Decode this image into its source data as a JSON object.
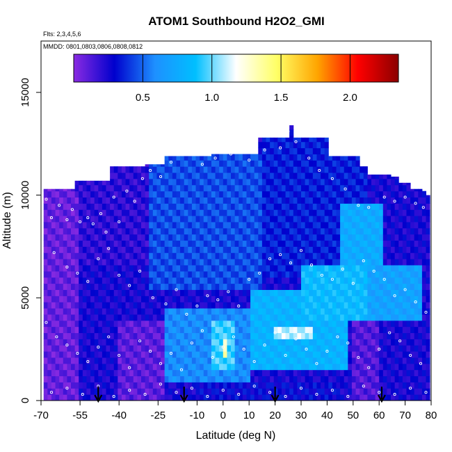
{
  "chart_data": {
    "type": "heatmap",
    "title": "ATOM1 Southbound H2O2_GMI",
    "subtitle_flights": "Flts: 2,3,4,5,6",
    "subtitle_dates": "MMDD: 0801,0803,0806,0808,0812",
    "xlabel": "Latitude (deg N)",
    "ylabel": "Altitude (m)",
    "xlim": [
      -70,
      80
    ],
    "ylim": [
      0,
      17500
    ],
    "x_ticks": [
      "-70",
      "-55",
      "-40",
      "-25",
      "-10",
      "0",
      "10",
      "20",
      "30",
      "40",
      "50",
      "60",
      "70",
      "80"
    ],
    "x_tick_values": [
      -70,
      -55,
      -40,
      -25,
      -10,
      0,
      10,
      20,
      30,
      40,
      50,
      60,
      70,
      80
    ],
    "y_ticks": [
      "0",
      "5000",
      "10000",
      "15000"
    ],
    "y_tick_values": [
      0,
      5000,
      10000,
      15000
    ],
    "colorbar": {
      "range": [
        0,
        2.35
      ],
      "tick_labels": [
        "0.5",
        "1.0",
        "1.5",
        "2.0"
      ],
      "tick_values": [
        0.5,
        1.0,
        1.5,
        2.0
      ],
      "colors": [
        "#8a2be2",
        "#0000cd",
        "#1e90ff",
        "#00bfff",
        "#ffffff",
        "#ffff66",
        "#ffa500",
        "#ff0000",
        "#8b0000"
      ]
    },
    "colors": {
      "low": "#8a2be2",
      "mid_low": "#0000cd",
      "mid": "#00bfff",
      "high": "#ffffff"
    },
    "top_altitude_profile": {
      "lat": [
        -69,
        -57,
        -48,
        -44,
        -35,
        -30,
        -24,
        -22,
        -13,
        -5,
        0,
        2,
        10,
        13,
        24,
        25,
        27,
        34,
        40,
        44,
        53,
        56,
        64,
        68,
        72,
        76,
        78,
        79
      ],
      "alt": [
        10300,
        10700,
        10700,
        11400,
        11400,
        11500,
        11500,
        11900,
        11900,
        12000,
        12000,
        12000,
        12000,
        12800,
        12800,
        13400,
        12800,
        12800,
        11900,
        11900,
        11400,
        11000,
        10900,
        10600,
        10300,
        10200,
        10000,
        9500
      ]
    },
    "regions": [
      {
        "lat": [
          -70,
          -56
        ],
        "alt": [
          0,
          10300
        ],
        "value": 0.08
      },
      {
        "lat": [
          -56,
          -28
        ],
        "alt": [
          6500,
          11500
        ],
        "value": 0.2
      },
      {
        "lat": [
          -28,
          15
        ],
        "alt": [
          5500,
          12000
        ],
        "value": 0.45
      },
      {
        "lat": [
          15,
          55
        ],
        "alt": [
          6000,
          12800
        ],
        "value": 0.35
      },
      {
        "lat": [
          45,
          62
        ],
        "alt": [
          5500,
          9500
        ],
        "value": 0.75
      },
      {
        "lat": [
          -40,
          -22
        ],
        "alt": [
          0,
          4000
        ],
        "value": 0.1
      },
      {
        "lat": [
          -22,
          10
        ],
        "alt": [
          1000,
          4500
        ],
        "value": 0.6
      },
      {
        "lat": [
          -5,
          5
        ],
        "alt": [
          1500,
          4000
        ],
        "value": 0.95
      },
      {
        "lat": [
          0,
          2
        ],
        "alt": [
          2000,
          3000
        ],
        "value": 1.3
      },
      {
        "lat": [
          10,
          48
        ],
        "alt": [
          1500,
          5500
        ],
        "value": 0.8
      },
      {
        "lat": [
          20,
          35
        ],
        "alt": [
          3000,
          3600
        ],
        "value": 1.1
      },
      {
        "lat": [
          30,
          55
        ],
        "alt": [
          4000,
          6500
        ],
        "value": 0.85
      },
      {
        "lat": [
          55,
          77
        ],
        "alt": [
          4000,
          6500
        ],
        "value": 0.7
      },
      {
        "lat": [
          50,
          60
        ],
        "alt": [
          0,
          4000
        ],
        "value": 0.12
      },
      {
        "lat": [
          -10,
          45
        ],
        "alt": [
          0,
          1000
        ],
        "value": 0.3
      }
    ],
    "sample_points": [
      [
        -68,
        9800
      ],
      [
        -66,
        8900
      ],
      [
        -63,
        9500
      ],
      [
        -60,
        8800
      ],
      [
        -58,
        9300
      ],
      [
        -55,
        8700
      ],
      [
        -52,
        8900
      ],
      [
        -50,
        8600
      ],
      [
        -47,
        9100
      ],
      [
        -45,
        8200
      ],
      [
        -42,
        9900
      ],
      [
        -40,
        8700
      ],
      [
        -37,
        10200
      ],
      [
        -34,
        9700
      ],
      [
        -31,
        10800
      ],
      [
        -28,
        11200
      ],
      [
        -24,
        10900
      ],
      [
        -20,
        11600
      ],
      [
        -15,
        12000
      ],
      [
        -8,
        11500
      ],
      [
        -3,
        11800
      ],
      [
        3,
        12000
      ],
      [
        10,
        11700
      ],
      [
        16,
        12200
      ],
      [
        22,
        12300
      ],
      [
        25,
        13100
      ],
      [
        28,
        12600
      ],
      [
        33,
        11800
      ],
      [
        37,
        11200
      ],
      [
        42,
        10800
      ],
      [
        47,
        10300
      ],
      [
        52,
        9500
      ],
      [
        56,
        9400
      ],
      [
        62,
        9900
      ],
      [
        66,
        9700
      ],
      [
        70,
        9900
      ],
      [
        74,
        9600
      ],
      [
        77,
        9400
      ],
      [
        -65,
        7200
      ],
      [
        -60,
        6500
      ],
      [
        -56,
        6200
      ],
      [
        -52,
        5800
      ],
      [
        -48,
        6900
      ],
      [
        -44,
        7400
      ],
      [
        -40,
        6100
      ],
      [
        -36,
        5600
      ],
      [
        -32,
        6300
      ],
      [
        -27,
        5000
      ],
      [
        -22,
        4700
      ],
      [
        -18,
        5400
      ],
      [
        -14,
        4200
      ],
      [
        -10,
        4600
      ],
      [
        -6,
        5100
      ],
      [
        -2,
        4900
      ],
      [
        2,
        5300
      ],
      [
        6,
        4600
      ],
      [
        10,
        5900
      ],
      [
        14,
        6200
      ],
      [
        18,
        6900
      ],
      [
        22,
        7100
      ],
      [
        26,
        6700
      ],
      [
        30,
        7300
      ],
      [
        34,
        6600
      ],
      [
        38,
        6100
      ],
      [
        42,
        5900
      ],
      [
        46,
        6400
      ],
      [
        50,
        5700
      ],
      [
        54,
        6800
      ],
      [
        58,
        6300
      ],
      [
        62,
        5900
      ],
      [
        66,
        5100
      ],
      [
        70,
        5400
      ],
      [
        74,
        4800
      ],
      [
        78,
        4300
      ],
      [
        -68,
        3800
      ],
      [
        -64,
        3100
      ],
      [
        -60,
        2700
      ],
      [
        -56,
        2300
      ],
      [
        -52,
        1900
      ],
      [
        -48,
        2600
      ],
      [
        -44,
        3100
      ],
      [
        -40,
        2200
      ],
      [
        -36,
        1600
      ],
      [
        -32,
        2900
      ],
      [
        -28,
        2400
      ],
      [
        -24,
        1800
      ],
      [
        -20,
        2300
      ],
      [
        -16,
        1500
      ],
      [
        -12,
        2800
      ],
      [
        -8,
        3400
      ],
      [
        -4,
        2100
      ],
      [
        0,
        2600
      ],
      [
        4,
        3100
      ],
      [
        8,
        2500
      ],
      [
        12,
        1900
      ],
      [
        16,
        2700
      ],
      [
        20,
        3300
      ],
      [
        24,
        2200
      ],
      [
        28,
        3000
      ],
      [
        32,
        2500
      ],
      [
        36,
        1800
      ],
      [
        40,
        2400
      ],
      [
        44,
        3100
      ],
      [
        48,
        2800
      ],
      [
        52,
        2100
      ],
      [
        56,
        1600
      ],
      [
        60,
        2500
      ],
      [
        64,
        3300
      ],
      [
        68,
        2900
      ],
      [
        72,
        2200
      ],
      [
        76,
        1800
      ],
      [
        -66,
        400
      ],
      [
        -60,
        600
      ],
      [
        -54,
        300
      ],
      [
        -48,
        700
      ],
      [
        -42,
        200
      ],
      [
        -36,
        500
      ],
      [
        -30,
        300
      ],
      [
        -24,
        800
      ],
      [
        -18,
        400
      ],
      [
        -12,
        600
      ],
      [
        -6,
        200
      ],
      [
        0,
        500
      ],
      [
        6,
        300
      ],
      [
        12,
        700
      ],
      [
        18,
        400
      ],
      [
        24,
        200
      ],
      [
        30,
        600
      ],
      [
        36,
        300
      ],
      [
        42,
        500
      ],
      [
        48,
        200
      ],
      [
        54,
        700
      ],
      [
        60,
        400
      ],
      [
        66,
        300
      ],
      [
        72,
        600
      ],
      [
        78,
        400
      ]
    ],
    "arrows_lat": [
      -48,
      -15,
      20,
      61
    ]
  }
}
